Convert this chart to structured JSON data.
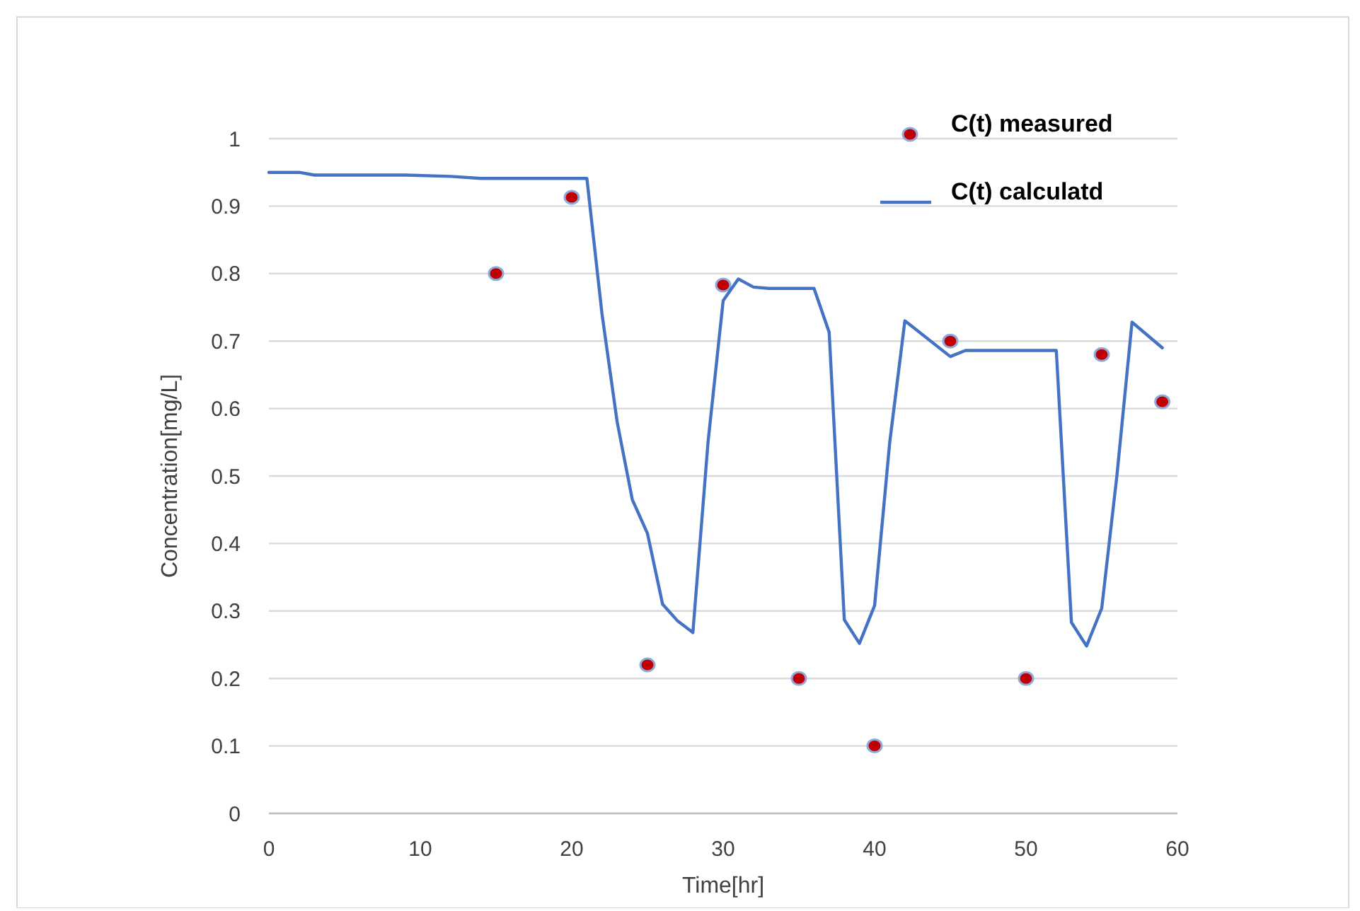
{
  "chart_data": {
    "type": "line",
    "xlabel": "Time[hr]",
    "ylabel": "Concentration[mg/L]",
    "xlim": [
      0,
      60
    ],
    "xticks": [
      0,
      10,
      20,
      30,
      40,
      50,
      60
    ],
    "ylim": [
      0,
      1
    ],
    "yticks": [
      0,
      0.1,
      0.2,
      0.3,
      0.4,
      0.5,
      0.6,
      0.7,
      0.8,
      0.9,
      1
    ],
    "grid": "y",
    "legend": "top right",
    "series": [
      {
        "name": "C(t) measured",
        "type": "scatter",
        "marker": "circle",
        "color": "#c00000",
        "x": [
          15,
          20,
          25,
          30,
          35,
          40,
          45,
          50,
          55,
          59
        ],
        "values": [
          0.8,
          0.913,
          0.22,
          0.783,
          0.2,
          0.1,
          0.7,
          0.2,
          0.68,
          0.61
        ]
      },
      {
        "name": "C(t) calculatd",
        "color": "#4472c4",
        "line_style": "solid",
        "x": [
          0,
          2,
          3,
          9,
          12,
          14,
          21,
          22,
          23,
          24,
          25,
          26,
          27,
          28,
          29,
          30,
          31,
          32,
          33,
          36,
          37,
          38,
          39,
          40,
          41,
          42,
          45,
          46,
          52,
          53,
          54,
          55,
          56,
          57,
          59
        ],
        "values": [
          0.95,
          0.95,
          0.946,
          0.946,
          0.944,
          0.941,
          0.941,
          0.74,
          0.58,
          0.465,
          0.415,
          0.31,
          0.285,
          0.268,
          0.55,
          0.76,
          0.792,
          0.78,
          0.778,
          0.778,
          0.713,
          0.287,
          0.252,
          0.308,
          0.55,
          0.73,
          0.677,
          0.686,
          0.686,
          0.283,
          0.248,
          0.304,
          0.5,
          0.728,
          0.69
        ]
      }
    ]
  }
}
